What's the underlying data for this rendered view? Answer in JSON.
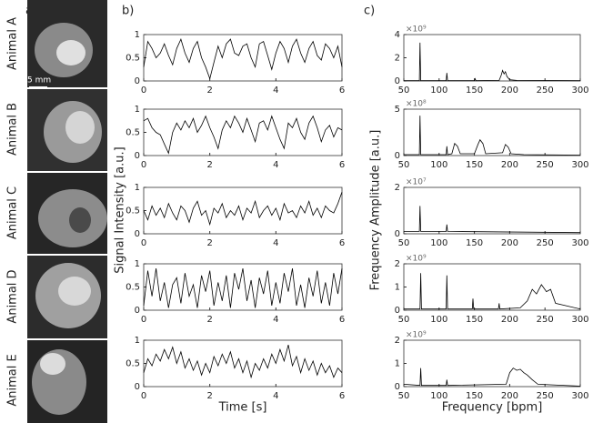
{
  "panel_labels": [
    "a)",
    "b)",
    "c)"
  ],
  "animals": [
    "Animal A",
    "Animal B",
    "Animal C",
    "Animal D",
    "Animal E"
  ],
  "scale_bar": "5 mm",
  "chart_data": [
    {
      "type": "line",
      "xlim": [
        0,
        6
      ],
      "ylim": [
        0,
        1
      ],
      "xticks": [
        0,
        2,
        4,
        6
      ],
      "yticks": [
        0,
        0.5,
        1
      ],
      "color": "#000000",
      "x": [
        0,
        0.125,
        0.25,
        0.375,
        0.5,
        0.625,
        0.75,
        0.875,
        1,
        1.125,
        1.25,
        1.375,
        1.5,
        1.625,
        1.75,
        1.875,
        2,
        2.125,
        2.25,
        2.375,
        2.5,
        2.625,
        2.75,
        2.875,
        3,
        3.125,
        3.25,
        3.375,
        3.5,
        3.625,
        3.75,
        3.875,
        4,
        4.125,
        4.25,
        4.375,
        4.5,
        4.625,
        4.75,
        4.875,
        5,
        5.125,
        5.25,
        5.375,
        5.5,
        5.625,
        5.75,
        5.875,
        6
      ],
      "values": [
        0.3,
        0.85,
        0.7,
        0.5,
        0.6,
        0.8,
        0.55,
        0.35,
        0.7,
        0.9,
        0.6,
        0.4,
        0.7,
        0.85,
        0.5,
        0.3,
        0.05,
        0.4,
        0.75,
        0.5,
        0.8,
        0.9,
        0.6,
        0.55,
        0.75,
        0.8,
        0.5,
        0.3,
        0.8,
        0.85,
        0.55,
        0.25,
        0.6,
        0.85,
        0.7,
        0.4,
        0.75,
        0.9,
        0.6,
        0.4,
        0.7,
        0.85,
        0.55,
        0.45,
        0.8,
        0.7,
        0.5,
        0.75,
        0.3
      ]
    },
    {
      "type": "line",
      "xlim": [
        0,
        6
      ],
      "ylim": [
        0,
        1
      ],
      "xticks": [
        0,
        2,
        4,
        6
      ],
      "yticks": [
        0,
        0.5,
        1
      ],
      "color": "#000000",
      "x": [
        0,
        0.125,
        0.25,
        0.375,
        0.5,
        0.625,
        0.75,
        0.875,
        1,
        1.125,
        1.25,
        1.375,
        1.5,
        1.625,
        1.75,
        1.875,
        2,
        2.125,
        2.25,
        2.375,
        2.5,
        2.625,
        2.75,
        2.875,
        3,
        3.125,
        3.25,
        3.375,
        3.5,
        3.625,
        3.75,
        3.875,
        4,
        4.125,
        4.25,
        4.375,
        4.5,
        4.625,
        4.75,
        4.875,
        5,
        5.125,
        5.25,
        5.375,
        5.5,
        5.625,
        5.75,
        5.875,
        6
      ],
      "values": [
        0.75,
        0.8,
        0.6,
        0.5,
        0.45,
        0.25,
        0.05,
        0.5,
        0.7,
        0.55,
        0.75,
        0.6,
        0.8,
        0.5,
        0.65,
        0.85,
        0.6,
        0.4,
        0.15,
        0.55,
        0.75,
        0.6,
        0.85,
        0.7,
        0.5,
        0.8,
        0.55,
        0.3,
        0.7,
        0.75,
        0.55,
        0.85,
        0.6,
        0.35,
        0.15,
        0.7,
        0.6,
        0.8,
        0.5,
        0.35,
        0.7,
        0.85,
        0.6,
        0.3,
        0.55,
        0.65,
        0.4,
        0.6,
        0.55
      ]
    },
    {
      "type": "line",
      "xlim": [
        0,
        6
      ],
      "ylim": [
        0,
        1
      ],
      "xticks": [
        0,
        2,
        4,
        6
      ],
      "yticks": [
        0,
        0.5,
        1
      ],
      "color": "#000000",
      "ylabel": "Signal Intensity [a.u.]",
      "x": [
        0,
        0.125,
        0.25,
        0.375,
        0.5,
        0.625,
        0.75,
        0.875,
        1,
        1.125,
        1.25,
        1.375,
        1.5,
        1.625,
        1.75,
        1.875,
        2,
        2.125,
        2.25,
        2.375,
        2.5,
        2.625,
        2.75,
        2.875,
        3,
        3.125,
        3.25,
        3.375,
        3.5,
        3.625,
        3.75,
        3.875,
        4,
        4.125,
        4.25,
        4.375,
        4.5,
        4.625,
        4.75,
        4.875,
        5,
        5.125,
        5.25,
        5.375,
        5.5,
        5.625,
        5.75,
        5.875,
        6
      ],
      "values": [
        0.5,
        0.3,
        0.6,
        0.4,
        0.55,
        0.35,
        0.65,
        0.45,
        0.3,
        0.6,
        0.5,
        0.25,
        0.55,
        0.7,
        0.4,
        0.5,
        0.2,
        0.55,
        0.45,
        0.65,
        0.35,
        0.5,
        0.4,
        0.6,
        0.3,
        0.55,
        0.45,
        0.7,
        0.35,
        0.5,
        0.6,
        0.4,
        0.55,
        0.3,
        0.65,
        0.45,
        0.5,
        0.35,
        0.6,
        0.45,
        0.7,
        0.4,
        0.55,
        0.35,
        0.6,
        0.5,
        0.45,
        0.65,
        0.9
      ]
    },
    {
      "type": "line",
      "xlim": [
        0,
        6
      ],
      "ylim": [
        0,
        1
      ],
      "xticks": [
        0,
        2,
        4,
        6
      ],
      "yticks": [
        0,
        0.5,
        1
      ],
      "color": "#000000",
      "x": [
        0,
        0.125,
        0.25,
        0.375,
        0.5,
        0.625,
        0.75,
        0.875,
        1,
        1.125,
        1.25,
        1.375,
        1.5,
        1.625,
        1.75,
        1.875,
        2,
        2.125,
        2.25,
        2.375,
        2.5,
        2.625,
        2.75,
        2.875,
        3,
        3.125,
        3.25,
        3.375,
        3.5,
        3.625,
        3.75,
        3.875,
        4,
        4.125,
        4.25,
        4.375,
        4.5,
        4.625,
        4.75,
        4.875,
        5,
        5.125,
        5.25,
        5.375,
        5.5,
        5.625,
        5.75,
        5.875,
        6
      ],
      "values": [
        0.1,
        0.85,
        0.3,
        0.9,
        0.2,
        0.6,
        0.05,
        0.55,
        0.7,
        0.15,
        0.8,
        0.3,
        0.55,
        0.05,
        0.75,
        0.4,
        0.85,
        0.1,
        0.6,
        0.2,
        0.75,
        0.05,
        0.8,
        0.45,
        0.9,
        0.2,
        0.65,
        0.05,
        0.7,
        0.35,
        0.85,
        0.1,
        0.6,
        0.15,
        0.8,
        0.4,
        0.9,
        0.1,
        0.55,
        0.05,
        0.7,
        0.3,
        0.85,
        0.15,
        0.6,
        0.1,
        0.8,
        0.35,
        0.9
      ]
    },
    {
      "type": "line",
      "xlim": [
        0,
        6
      ],
      "ylim": [
        0,
        1
      ],
      "xticks": [
        0,
        2,
        4,
        6
      ],
      "yticks": [
        0,
        0.5,
        1
      ],
      "color": "#000000",
      "xlabel": "Time [s]",
      "x": [
        0,
        0.125,
        0.25,
        0.375,
        0.5,
        0.625,
        0.75,
        0.875,
        1,
        1.125,
        1.25,
        1.375,
        1.5,
        1.625,
        1.75,
        1.875,
        2,
        2.125,
        2.25,
        2.375,
        2.5,
        2.625,
        2.75,
        2.875,
        3,
        3.125,
        3.25,
        3.375,
        3.5,
        3.625,
        3.75,
        3.875,
        4,
        4.125,
        4.25,
        4.375,
        4.5,
        4.625,
        4.75,
        4.875,
        5,
        5.125,
        5.25,
        5.375,
        5.5,
        5.625,
        5.75,
        5.875,
        6
      ],
      "values": [
        0.3,
        0.6,
        0.45,
        0.7,
        0.55,
        0.8,
        0.6,
        0.85,
        0.5,
        0.75,
        0.4,
        0.6,
        0.35,
        0.55,
        0.25,
        0.5,
        0.3,
        0.65,
        0.45,
        0.7,
        0.5,
        0.75,
        0.4,
        0.6,
        0.3,
        0.55,
        0.2,
        0.5,
        0.35,
        0.6,
        0.4,
        0.7,
        0.5,
        0.8,
        0.55,
        0.9,
        0.45,
        0.65,
        0.3,
        0.6,
        0.35,
        0.55,
        0.25,
        0.5,
        0.3,
        0.45,
        0.2,
        0.4,
        0.3
      ]
    },
    {
      "type": "line",
      "xlim": [
        50,
        300
      ],
      "ylim": [
        0,
        4
      ],
      "xticks": [
        50,
        100,
        150,
        200,
        250,
        300
      ],
      "yticks": [
        0,
        2,
        4
      ],
      "multiplier": "×10⁹",
      "color": "#000000",
      "x": [
        50,
        72,
        73,
        74,
        110,
        111,
        112,
        150,
        151,
        152,
        185,
        188,
        190,
        192,
        194,
        196,
        200,
        210,
        300
      ],
      "values": [
        0.02,
        0.02,
        3.3,
        0.02,
        0.02,
        0.7,
        0.02,
        0.02,
        0.2,
        0.02,
        0.05,
        0.5,
        0.9,
        0.6,
        0.8,
        0.4,
        0.1,
        0.05,
        0.02
      ]
    },
    {
      "type": "line",
      "xlim": [
        50,
        300
      ],
      "ylim": [
        0,
        5
      ],
      "xticks": [
        50,
        100,
        150,
        200,
        250,
        300
      ],
      "yticks": [
        0,
        5
      ],
      "multiplier": "×10⁸",
      "color": "#000000",
      "x": [
        50,
        72,
        73,
        74,
        110,
        111,
        112,
        118,
        122,
        126,
        130,
        150,
        155,
        158,
        162,
        166,
        190,
        194,
        198,
        202,
        220,
        300
      ],
      "values": [
        0.1,
        0.1,
        4.3,
        0.1,
        0.1,
        1.0,
        0.1,
        0.2,
        1.3,
        1.0,
        0.2,
        0.2,
        1.2,
        1.7,
        1.3,
        0.2,
        0.3,
        1.2,
        0.9,
        0.2,
        0.1,
        0.05
      ]
    },
    {
      "type": "line",
      "xlim": [
        50,
        300
      ],
      "ylim": [
        0,
        2
      ],
      "xticks": [
        50,
        100,
        150,
        200,
        250,
        300
      ],
      "yticks": [
        0,
        2
      ],
      "multiplier": "×10⁷",
      "color": "#000000",
      "ylabel": "Frequency Amplitude [a.u.]",
      "x": [
        50,
        72,
        73,
        74,
        110,
        111,
        112,
        300
      ],
      "values": [
        0.1,
        0.1,
        1.2,
        0.1,
        0.1,
        0.4,
        0.1,
        0.05
      ]
    },
    {
      "type": "line",
      "xlim": [
        50,
        300
      ],
      "ylim": [
        0,
        2
      ],
      "xticks": [
        50,
        100,
        150,
        200,
        250,
        300
      ],
      "yticks": [
        0,
        1,
        2
      ],
      "multiplier": "×10⁹",
      "color": "#000000",
      "x": [
        50,
        73,
        74,
        75,
        110,
        111,
        112,
        147,
        148,
        149,
        184,
        185,
        186,
        215,
        225,
        232,
        238,
        245,
        252,
        258,
        265,
        300
      ],
      "values": [
        0.05,
        0.05,
        1.6,
        0.05,
        0.05,
        1.5,
        0.05,
        0.05,
        0.5,
        0.05,
        0.05,
        0.3,
        0.05,
        0.1,
        0.4,
        0.9,
        0.7,
        1.1,
        0.8,
        0.9,
        0.3,
        0.05
      ]
    },
    {
      "type": "line",
      "xlim": [
        50,
        300
      ],
      "ylim": [
        0,
        2
      ],
      "xticks": [
        50,
        100,
        150,
        200,
        250,
        300
      ],
      "yticks": [
        0,
        1,
        2
      ],
      "multiplier": "×10⁹",
      "color": "#000000",
      "xlabel": "Frequency [bpm]",
      "x": [
        50,
        73,
        74,
        75,
        110,
        111,
        112,
        195,
        200,
        205,
        210,
        215,
        220,
        225,
        232,
        240,
        300
      ],
      "values": [
        0.1,
        0.05,
        0.8,
        0.05,
        0.05,
        0.3,
        0.05,
        0.1,
        0.6,
        0.8,
        0.7,
        0.75,
        0.6,
        0.5,
        0.3,
        0.1,
        0.02
      ]
    }
  ]
}
